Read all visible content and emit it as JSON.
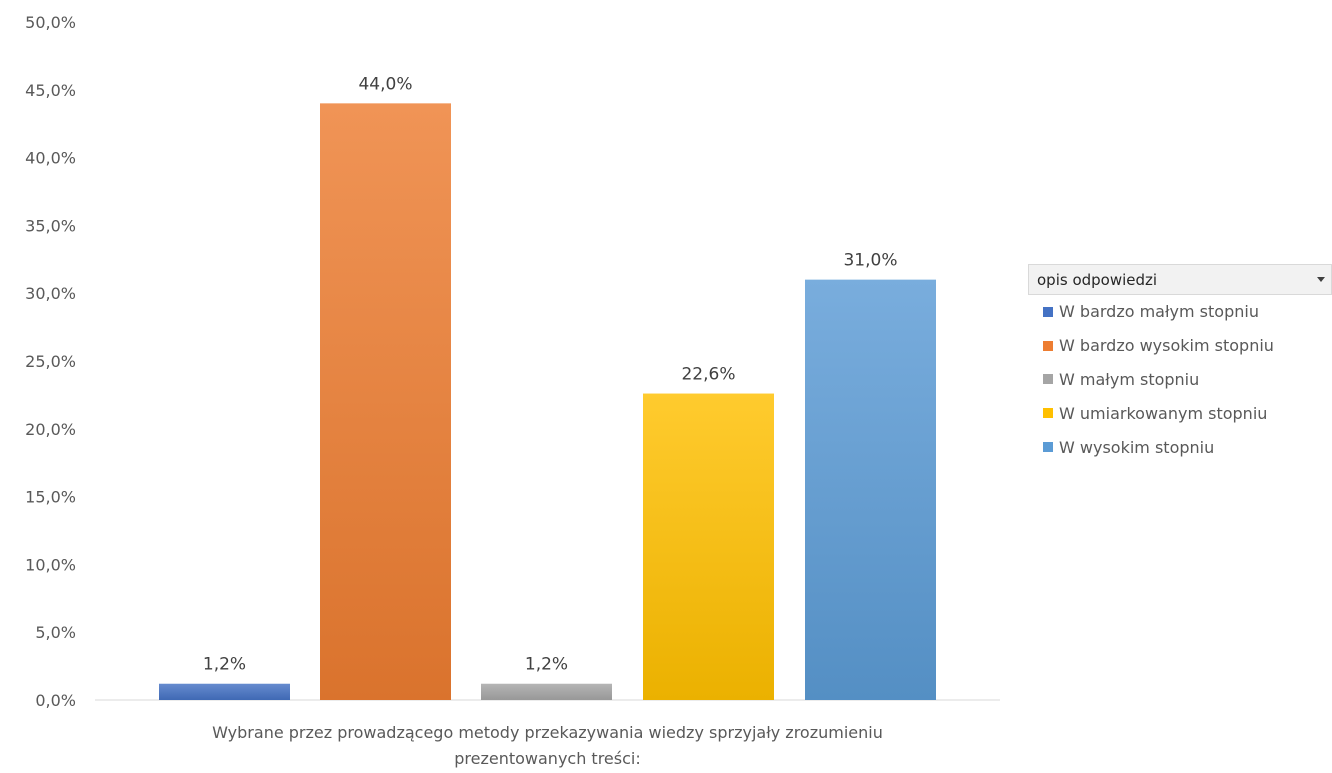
{
  "chart_data": {
    "type": "bar",
    "categories": [
      "Wybrane przez prowadzącego metody przekazywania wiedzy sprzyjały zrozumieniu prezentowanych treści:"
    ],
    "category_label_lines": [
      "Wybrane przez prowadzącego metody przekazywania wiedzy sprzyjały zrozumieniu",
      "prezentowanych treści:"
    ],
    "series": [
      {
        "name": "W bardzo małym stopniu",
        "values": [
          1.2
        ],
        "label": "1,2%",
        "color": "#4472c4"
      },
      {
        "name": "W bardzo wysokim stopniu",
        "values": [
          44.0
        ],
        "label": "44,0%",
        "color": "#ed7d31"
      },
      {
        "name": "W małym stopniu",
        "values": [
          1.2
        ],
        "label": "1,2%",
        "color": "#a5a5a5"
      },
      {
        "name": "W umiarkowanym stopniu",
        "values": [
          22.6
        ],
        "label": "22,6%",
        "color": "#ffc000"
      },
      {
        "name": "W wysokim stopniu",
        "values": [
          31.0
        ],
        "label": "31,0%",
        "color": "#5b9bd5"
      }
    ],
    "ylim": [
      0,
      50
    ],
    "yticks": [
      0,
      5,
      10,
      15,
      20,
      25,
      30,
      35,
      40,
      45,
      50
    ],
    "ytick_labels": [
      "0,0%",
      "5,0%",
      "10,0%",
      "15,0%",
      "20,0%",
      "25,0%",
      "30,0%",
      "35,0%",
      "40,0%",
      "45,0%",
      "50,0%"
    ],
    "grid": false,
    "legend_position": "right"
  },
  "legend": {
    "field_button_label": "opis odpowiedzi",
    "items": [
      {
        "label": "W bardzo małym stopniu",
        "color": "#4472c4"
      },
      {
        "label": "W bardzo wysokim stopniu",
        "color": "#ed7d31"
      },
      {
        "label": "W małym stopniu",
        "color": "#a5a5a5"
      },
      {
        "label": "W umiarkowanym stopniu",
        "color": "#ffc000"
      },
      {
        "label": "W wysokim stopniu",
        "color": "#5b9bd5"
      }
    ]
  }
}
